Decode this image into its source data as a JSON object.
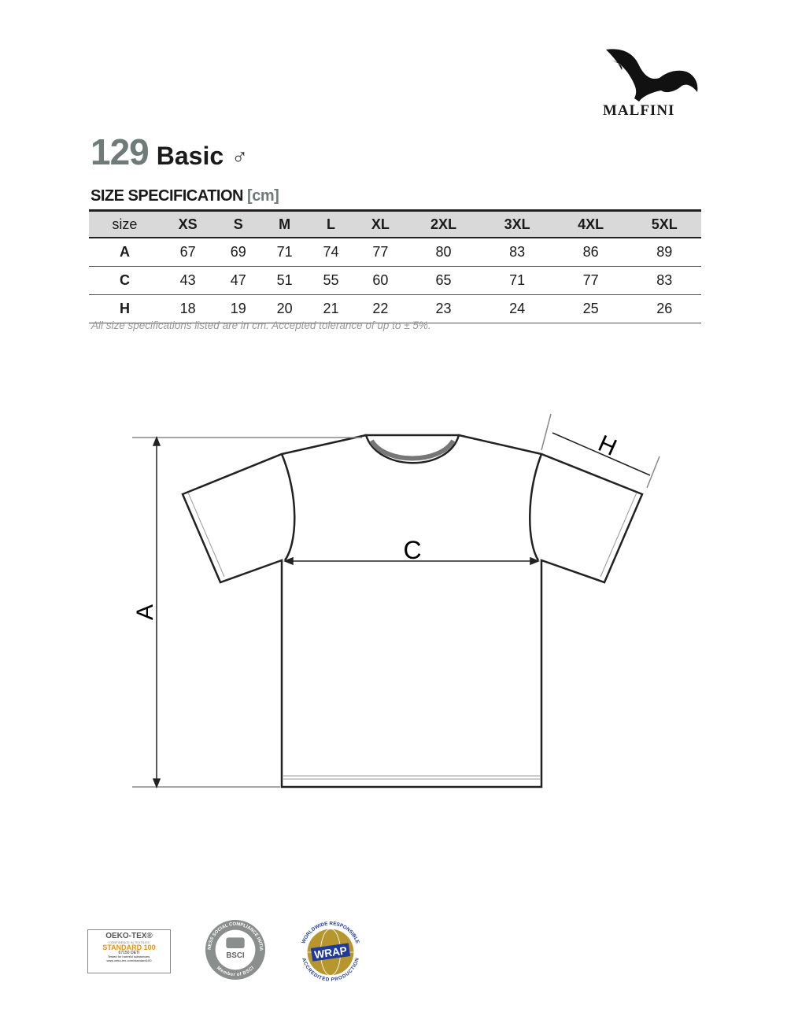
{
  "brand": {
    "name": "MALFINI"
  },
  "product": {
    "model": "129",
    "name": "Basic",
    "gender_symbol": "♂"
  },
  "spec": {
    "title": "SIZE SPECIFICATION",
    "unit": "[cm]",
    "header": [
      "size",
      "XS",
      "S",
      "M",
      "L",
      "XL",
      "2XL",
      "3XL",
      "4XL",
      "5XL"
    ],
    "rows": [
      {
        "label": "A",
        "values": [
          "67",
          "69",
          "71",
          "74",
          "77",
          "80",
          "83",
          "86",
          "89"
        ]
      },
      {
        "label": "C",
        "values": [
          "43",
          "47",
          "51",
          "55",
          "60",
          "65",
          "71",
          "77",
          "83"
        ]
      },
      {
        "label": "H",
        "values": [
          "18",
          "19",
          "20",
          "21",
          "22",
          "23",
          "24",
          "25",
          "26"
        ]
      }
    ],
    "note": "All size specifications listed are in cm. Accepted tolerance of up to ± 5%."
  },
  "diagram": {
    "labels": {
      "a": "A",
      "c": "C",
      "h": "H"
    }
  },
  "certifications": {
    "oeko": {
      "title": "OEKO-TEX®",
      "sub": "CONFIDENCE IN TEXTILES",
      "standard": "STANDARD 100",
      "code": "67150 OETI",
      "line1": "Tested for harmful substances.",
      "line2": "www.oeko-tex.com/standard100"
    },
    "bsci": {
      "label": "BSCI",
      "ring": "BUSINESS SOCIAL COMPLIANCE INITIATIVE",
      "member": "Member of BSCI"
    },
    "wrap": {
      "label": "WRAP",
      "ring_top": "WORLDWIDE RESPONSIBLE",
      "ring_bottom": "ACCREDITED PRODUCTION"
    }
  },
  "colors": {
    "accent_grey": "#6f7b78",
    "header_bg": "#d9d9d9",
    "oeko_orange": "#f39200",
    "wrap_blue": "#1e3a9e",
    "wrap_gold": "#b8962e"
  }
}
